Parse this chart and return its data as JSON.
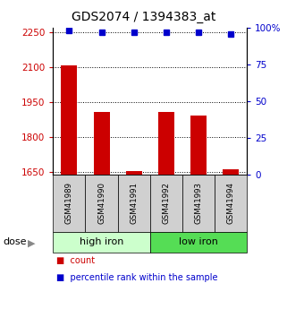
{
  "title": "GDS2074 / 1394383_at",
  "samples": [
    "GSM41989",
    "GSM41990",
    "GSM41991",
    "GSM41992",
    "GSM41993",
    "GSM41994"
  ],
  "bar_values": [
    2110,
    1910,
    1655,
    1908,
    1895,
    1662
  ],
  "percentile_values": [
    98,
    97,
    97,
    97,
    97,
    96
  ],
  "bar_color": "#cc0000",
  "dot_color": "#0000cc",
  "ylim_left": [
    1640,
    2270
  ],
  "ylim_right": [
    0,
    100
  ],
  "yticks_left": [
    1650,
    1800,
    1950,
    2100,
    2250
  ],
  "yticks_right": [
    0,
    25,
    50,
    75,
    100
  ],
  "ytick_labels_right": [
    "0",
    "25",
    "50",
    "75",
    "100%"
  ],
  "groups": [
    {
      "label": "high iron",
      "indices": [
        0,
        1,
        2
      ],
      "color": "#ccffcc"
    },
    {
      "label": "low iron",
      "indices": [
        3,
        4,
        5
      ],
      "color": "#55dd55"
    }
  ],
  "dose_label": "dose",
  "legend_count": "count",
  "legend_percentile": "percentile rank within the sample",
  "bar_width": 0.5,
  "left_tick_color": "#cc0000",
  "right_tick_color": "#0000cc",
  "background_color": "#ffffff",
  "sample_box_color": "#d0d0d0",
  "tick_fontsize": 7.5,
  "title_fontsize": 10
}
